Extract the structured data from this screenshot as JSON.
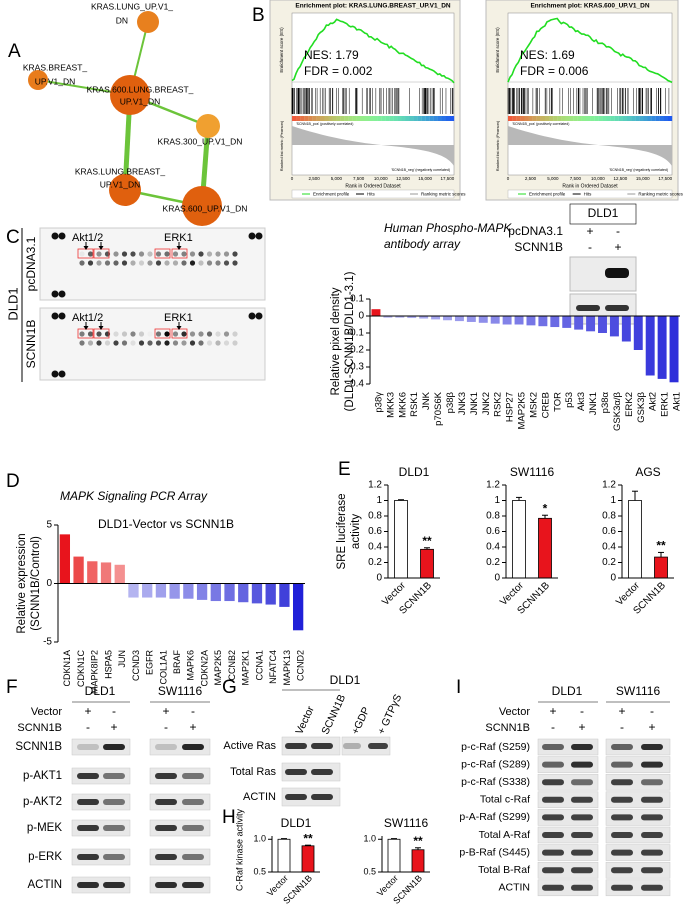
{
  "figure": {
    "panel_labels": [
      "A",
      "B",
      "C",
      "D",
      "E",
      "F",
      "G",
      "H",
      "I"
    ],
    "network": {
      "nodes": [
        {
          "label": [
            "KRAS.LUNG_UP.V1_",
            "DN"
          ]
        },
        {
          "label": [
            "KRAS.BREAST_",
            "UP.V1_DN"
          ]
        },
        {
          "label": [
            "KRAS.600.LUNG.BREAST_",
            "UP.V1_DN"
          ]
        },
        {
          "label": [
            "KRAS.300_UP.V1_DN"
          ]
        },
        {
          "label": [
            "KRAS.LUNG.BREAST_",
            "UP.V1_DN"
          ]
        },
        {
          "label": [
            "KRAS.600_UP.V1_DN"
          ]
        }
      ]
    },
    "gsea": [
      {
        "title": "Enrichment plot: KRAS.LUNG.BREAST_UP.V1_DN",
        "nes": "NES: 1.79",
        "fdr": "FDR = 0.002"
      },
      {
        "title": "Enrichment plot: KRAS.600_UP.V1_DN",
        "nes": "NES: 1.69",
        "fdr": "FDR = 0.006"
      }
    ],
    "gsea_axis": {
      "y_top": "Enrichment score (ES)",
      "y_bottom": "Ranked list metric (Pearson)",
      "x": "Rank in Ordered Dataset",
      "xticks": [
        "0",
        "2,500",
        "5,000",
        "7,500",
        "10,000",
        "12,500",
        "15,000",
        "17,500"
      ],
      "pos_label": "'SCNN1B_pos' (positively correlated)",
      "neg_label": "'SCNN1B_neg' (negatively correlated)",
      "legend": [
        "Enrichment profile",
        "Hits",
        "Ranking metric scores"
      ]
    },
    "array": {
      "cell_line": "DLD1",
      "rows": [
        "pcDNA3.1",
        "SCNN1B"
      ],
      "markers": [
        "Akt1/2",
        "ERK1"
      ],
      "title": [
        "Human Phospho-MAPK",
        "antibody array"
      ],
      "inset": {
        "cell_line": "DLD1",
        "rows": [
          {
            "name": "pcDNA3.1",
            "signs": [
              "+",
              "-"
            ]
          },
          {
            "name": "SCNN1B",
            "signs": [
              "-",
              "+"
            ]
          }
        ]
      }
    },
    "blot_F": {
      "groups": [
        "DLD1",
        "SW1116"
      ],
      "conditions": [
        {
          "name": "Vector",
          "signs": [
            "+",
            "-",
            "+",
            "-"
          ]
        },
        {
          "name": "SCNN1B",
          "signs": [
            "-",
            "+",
            "-",
            "+"
          ]
        }
      ],
      "rows": [
        "SCNN1B",
        "p-AKT1",
        "p-AKT2",
        "p-MEK",
        "p-ERK",
        "ACTIN"
      ]
    },
    "blot_G": {
      "group": "DLD1",
      "lanes": [
        "Vector",
        "SCNN1B",
        "+GDP",
        "+ GTPγS"
      ],
      "rows": [
        "Active Ras",
        "Total Ras",
        "ACTIN"
      ]
    },
    "blot_I": {
      "groups": [
        "DLD1",
        "SW1116"
      ],
      "conditions": [
        {
          "name": "Vector",
          "signs": [
            "+",
            "-",
            "+",
            "-"
          ]
        },
        {
          "name": "SCNN1B",
          "signs": [
            "-",
            "+",
            "-",
            "+"
          ]
        }
      ],
      "rows": [
        "p-c-Raf (S259)",
        "p-c-Raf (S289)",
        "p-c-Raf (S338)",
        "Total c-Raf",
        "p-A-Raf (S299)",
        "Total A-Raf",
        "p-B-Raf (S445)",
        "Total B-Raf",
        "ACTIN"
      ]
    }
  },
  "chart_data": [
    {
      "type": "bar",
      "ylabel": [
        "Relative pixel density",
        "(DLD1-SCNN1B/DLD1-3.1)"
      ],
      "categories": [
        "p38γ",
        "MKK3",
        "MKK6",
        "RSK1",
        "JNK",
        "p70S6K",
        "p38β",
        "JNK3",
        "JNK1",
        "JNK2",
        "RSK2",
        "HSP27",
        "MAP2K5",
        "MSK2",
        "CREB",
        "TOR",
        "p53",
        "Akt3",
        "JNK1",
        "p38α",
        "GSK3α/β",
        "ERK2",
        "GSK3β",
        "Akt2",
        "ERK1",
        "Akt1"
      ],
      "values": [
        0.04,
        -0.01,
        -0.01,
        -0.012,
        -0.015,
        -0.02,
        -0.025,
        -0.03,
        -0.035,
        -0.04,
        -0.045,
        -0.05,
        -0.05,
        -0.055,
        -0.06,
        -0.065,
        -0.07,
        -0.08,
        -0.09,
        -0.1,
        -0.12,
        -0.15,
        -0.2,
        -0.35,
        -0.37,
        -0.39
      ],
      "colors": [
        "#e8141c",
        "#b4b4f2",
        "#b0b0f1",
        "#acacf0",
        "#a8a8ef",
        "#a4a4ee",
        "#a0a0ed",
        "#9a9aec",
        "#9494eb",
        "#8e8eea",
        "#8888e9",
        "#8282e8",
        "#7c7ce7",
        "#7676e6",
        "#7070e5",
        "#6a6ae4",
        "#6464e3",
        "#5e5ee2",
        "#5858e1",
        "#5252e0",
        "#4c4cdf",
        "#4646de",
        "#4040dd",
        "#3a3adc",
        "#3434db",
        "#2e2eda"
      ],
      "ylim": [
        -0.4,
        0.1
      ],
      "yticks": [
        0.1,
        0,
        -0.1,
        -0.2,
        -0.3,
        -0.4
      ]
    },
    {
      "type": "bar",
      "title": "MAPK Signaling PCR Array",
      "subtitle": "DLD1-Vector vs SCNN1B",
      "ylabel": [
        "Relative expression",
        "(SCNN1B/Control)"
      ],
      "categories": [
        "CDKN1A",
        "CDKN1C",
        "MAPK8IP2",
        "HSPA5",
        "JUN",
        "CCND3",
        "EGFR",
        "COL1A1",
        "BRAF",
        "MAPK6",
        "CDKN2A",
        "MAP2K5",
        "CCNB2",
        "MAP2K1",
        "CCNA1",
        "NFATC4",
        "MAPK13",
        "CCND2"
      ],
      "values": [
        4.2,
        2.3,
        1.9,
        1.8,
        1.6,
        -1.2,
        -1.2,
        -1.2,
        -1.3,
        -1.3,
        -1.4,
        -1.5,
        -1.5,
        -1.6,
        -1.7,
        -1.8,
        -2.0,
        -4.0
      ],
      "colors": [
        "#e8141c",
        "#ec4a4a",
        "#f06464",
        "#f07878",
        "#f49090",
        "#b4b4f0",
        "#aaaaee",
        "#a0a0ec",
        "#9696ea",
        "#8c8ce8",
        "#8282e6",
        "#7878e4",
        "#6e6ee2",
        "#6464e0",
        "#5858de",
        "#4c4cdc",
        "#4040da",
        "#2020d8"
      ],
      "ylim": [
        -5,
        5
      ],
      "yticks": [
        5,
        0,
        -5
      ]
    },
    {
      "type": "bar",
      "title": "DLD1",
      "ylabel": [
        "SRE luciferase",
        "activity"
      ],
      "categories": [
        "Vector",
        "SCNN1B"
      ],
      "values": [
        1.0,
        0.37
      ],
      "errors": [
        0.01,
        0.02
      ],
      "colors": [
        "#ffffff",
        "#e8141c"
      ],
      "significance": "**",
      "ylim": [
        0,
        1.2
      ],
      "yticks": [
        0,
        0.2,
        0.4,
        0.6,
        0.8,
        1,
        1.2
      ]
    },
    {
      "type": "bar",
      "title": "SW1116",
      "categories": [
        "Vector",
        "SCNN1B"
      ],
      "values": [
        1.0,
        0.77
      ],
      "errors": [
        0.04,
        0.04
      ],
      "colors": [
        "#ffffff",
        "#e8141c"
      ],
      "significance": "*",
      "ylim": [
        0,
        1.2
      ],
      "yticks": [
        0,
        0.2,
        0.4,
        0.6,
        0.8,
        1,
        1.2
      ]
    },
    {
      "type": "bar",
      "title": "AGS",
      "categories": [
        "Vector",
        "SCNN1B"
      ],
      "values": [
        1.0,
        0.27
      ],
      "errors": [
        0.12,
        0.06
      ],
      "colors": [
        "#ffffff",
        "#e8141c"
      ],
      "significance": "**",
      "ylim": [
        0,
        1.2
      ],
      "yticks": [
        0,
        0.2,
        0.4,
        0.6,
        0.8,
        1,
        1.2
      ]
    },
    {
      "type": "bar",
      "title": "DLD1",
      "ylabel": [
        "C-Raf kinase activity"
      ],
      "categories": [
        "Vector",
        "SCNN1B"
      ],
      "values": [
        1.0,
        0.9
      ],
      "errors": [
        0.01,
        0.01
      ],
      "colors": [
        "#ffffff",
        "#e8141c"
      ],
      "significance": "**",
      "ylim": [
        0.5,
        1.05
      ],
      "yticks": [
        0.5,
        {
          "value": 1,
          "label": "1.0"
        }
      ]
    },
    {
      "type": "bar",
      "title": "SW1116",
      "categories": [
        "Vector",
        "SCNN1B"
      ],
      "values": [
        1.0,
        0.84
      ],
      "errors": [
        0.01,
        0.03
      ],
      "colors": [
        "#ffffff",
        "#e8141c"
      ],
      "significance": "**",
      "ylim": [
        0.5,
        1.05
      ],
      "yticks": [
        0.5,
        {
          "value": 1,
          "label": "1.0"
        }
      ]
    }
  ]
}
